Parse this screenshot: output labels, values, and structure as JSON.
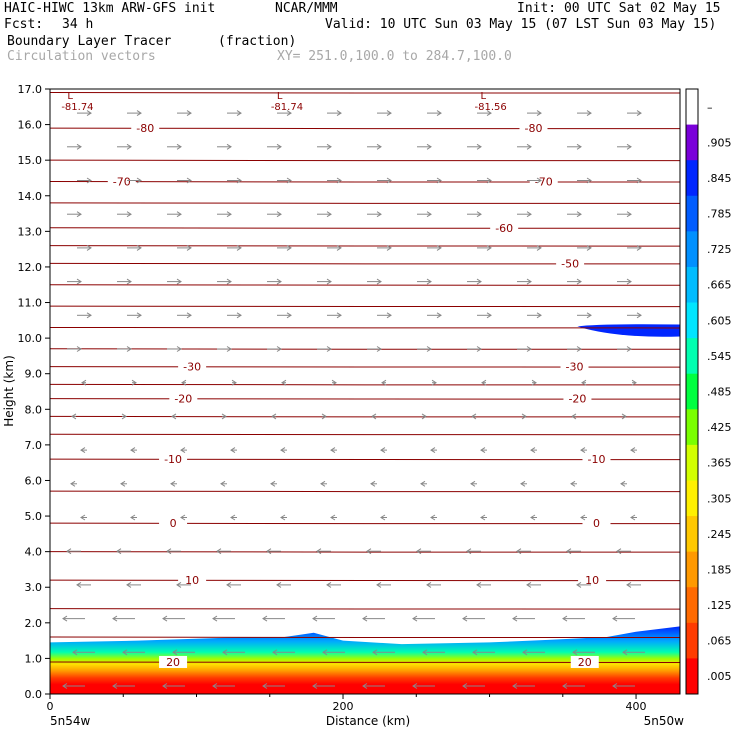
{
  "header": {
    "model": "HAIC-HIWC 13km ARW-GFS init",
    "org": "NCAR/MMM",
    "init": "Init: 00 UTC Sat 02 May 15",
    "fcst_label": "Fcst:",
    "fcst_value": "34 h",
    "valid": "Valid: 10 UTC Sun 03 May 15 (07 LST Sun 03 May 15)",
    "field": "Boundary Layer Tracer",
    "field_units": "(fraction)",
    "overlay": "Circulation vectors",
    "xy": "XY= 251.0,100.0 to 284.7,100.0"
  },
  "chart_data": {
    "type": "heatmap",
    "xlabel": "Distance (km)",
    "ylabel": "Height (km)",
    "xlim": [
      0,
      430
    ],
    "ylim": [
      0,
      17
    ],
    "x_ticks": [
      0,
      200,
      400
    ],
    "y_ticks": [
      "0.0",
      "1.0",
      "2.0",
      "3.0",
      "4.0",
      "5.0",
      "6.0",
      "7.0",
      "8.0",
      "9.0",
      "10.0",
      "11.0",
      "12.0",
      "13.0",
      "14.0",
      "15.0",
      "16.0",
      "17.0"
    ],
    "x_endpoints": [
      "5n54w",
      "5n50w"
    ],
    "colorbar": {
      "labels": [
        "–",
        ".905",
        ".845",
        ".785",
        ".725",
        ".665",
        ".605",
        ".545",
        ".485",
        ".425",
        ".365",
        ".305",
        ".245",
        ".185",
        ".125",
        ".065",
        ".005"
      ],
      "colors": [
        "#ffffff",
        "#7a00d9",
        "#0026ff",
        "#005cff",
        "#0090ff",
        "#00bcff",
        "#00e5ff",
        "#00ffb0",
        "#00ff40",
        "#7aff00",
        "#d2ff00",
        "#fff000",
        "#ffc800",
        "#ff9900",
        "#ff6a00",
        "#ff3c00",
        "#ff0000"
      ]
    },
    "low_markers": [
      {
        "x": 5,
        "label": "L",
        "value": "-81.74"
      },
      {
        "x": 148,
        "label": "L",
        "value": "-81.74"
      },
      {
        "x": 287,
        "label": "L",
        "value": "-81.56"
      }
    ],
    "isotherms": [
      {
        "z": 15.9,
        "label": "-80",
        "lx": [
          65,
          330
        ]
      },
      {
        "z": 14.4,
        "label": "-70",
        "lx": [
          49,
          337
        ]
      },
      {
        "z": 13.1,
        "label": "-60",
        "lx": [
          310
        ]
      },
      {
        "z": 12.1,
        "label": "-50",
        "lx": [
          355
        ]
      },
      {
        "z": 9.2,
        "label": "-30",
        "lx": [
          97,
          358
        ]
      },
      {
        "z": 8.3,
        "label": "-20",
        "lx": [
          91,
          360
        ]
      },
      {
        "z": 6.6,
        "label": "-10",
        "lx": [
          84,
          373
        ]
      },
      {
        "z": 4.8,
        "label": "0",
        "lx": [
          84,
          373
        ]
      },
      {
        "z": 3.2,
        "label": "10",
        "lx": [
          97,
          370
        ]
      },
      {
        "z": 0.9,
        "label": "20",
        "lx": [
          84,
          365
        ]
      }
    ],
    "tracer_top": [
      {
        "x": 0,
        "z": 1.45
      },
      {
        "x": 60,
        "z": 1.5
      },
      {
        "x": 120,
        "z": 1.58
      },
      {
        "x": 160,
        "z": 1.6
      },
      {
        "x": 180,
        "z": 1.72
      },
      {
        "x": 200,
        "z": 1.5
      },
      {
        "x": 240,
        "z": 1.4
      },
      {
        "x": 300,
        "z": 1.45
      },
      {
        "x": 340,
        "z": 1.52
      },
      {
        "x": 380,
        "z": 1.6
      },
      {
        "x": 400,
        "z": 1.75
      },
      {
        "x": 430,
        "z": 1.9
      }
    ],
    "upper_tracer": {
      "x_start": 360,
      "x_end": 430,
      "z": 10.3,
      "value": 0.9
    }
  }
}
